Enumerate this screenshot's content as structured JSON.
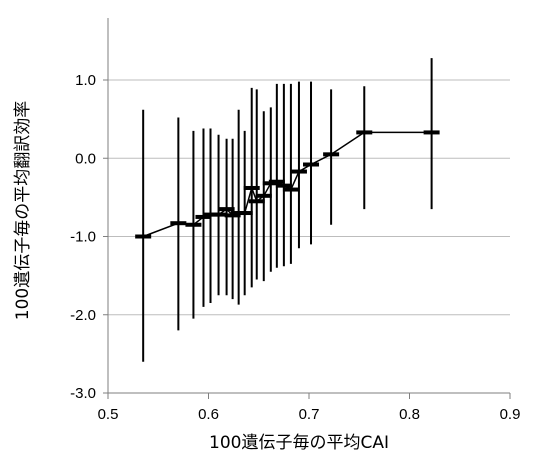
{
  "chart_data": {
    "type": "scatter",
    "title": "",
    "xlabel": "100遺伝子毎の平均CAI",
    "ylabel": "100遺伝子毎の平均翻訳効率",
    "xlim": [
      0.5,
      0.9
    ],
    "ylim": [
      -3.0,
      1.0
    ],
    "x_ticks": [
      0.5,
      0.6,
      0.7,
      0.8,
      0.9
    ],
    "x_tick_labels": [
      "0.5",
      "0.6",
      "0.7",
      "0.8",
      "0.9"
    ],
    "y_ticks": [
      -3.0,
      -2.0,
      -1.0,
      0.0,
      1.0
    ],
    "y_tick_labels": [
      "-3.0",
      "-2.0",
      "-1.0",
      "0.0",
      "1.0"
    ],
    "grid": "horizontal",
    "legend": "none",
    "series": [
      {
        "x": [
          0.535,
          0.57,
          0.585,
          0.595,
          0.602,
          0.61,
          0.618,
          0.624,
          0.63,
          0.636,
          0.643,
          0.648,
          0.655,
          0.662,
          0.668,
          0.675,
          0.682,
          0.69,
          0.702,
          0.722,
          0.755,
          0.822
        ],
        "y": [
          -1.0,
          -0.83,
          -0.85,
          -0.75,
          -0.72,
          -0.72,
          -0.65,
          -0.73,
          -0.7,
          -0.7,
          -0.38,
          -0.55,
          -0.48,
          -0.32,
          -0.3,
          -0.35,
          -0.4,
          -0.17,
          -0.08,
          0.05,
          0.33,
          0.33
        ],
        "y_err_low": [
          -2.6,
          -2.2,
          -2.05,
          -1.9,
          -1.85,
          -1.75,
          -1.75,
          -1.8,
          -1.87,
          -1.75,
          -1.65,
          -1.55,
          -1.57,
          -1.45,
          -1.4,
          -1.38,
          -1.35,
          -1.15,
          -1.1,
          -0.85,
          -0.65,
          -0.65
        ],
        "y_err_high": [
          0.62,
          0.52,
          0.35,
          0.38,
          0.38,
          0.3,
          0.25,
          0.25,
          0.62,
          0.35,
          0.9,
          0.88,
          0.6,
          0.65,
          0.95,
          0.95,
          0.95,
          0.98,
          0.98,
          0.88,
          0.92,
          1.28
        ]
      }
    ],
    "colors": {
      "marker": "#000000",
      "line": "#000000",
      "grid": "#bdbdbd",
      "axis": "#7f7f7f"
    }
  }
}
